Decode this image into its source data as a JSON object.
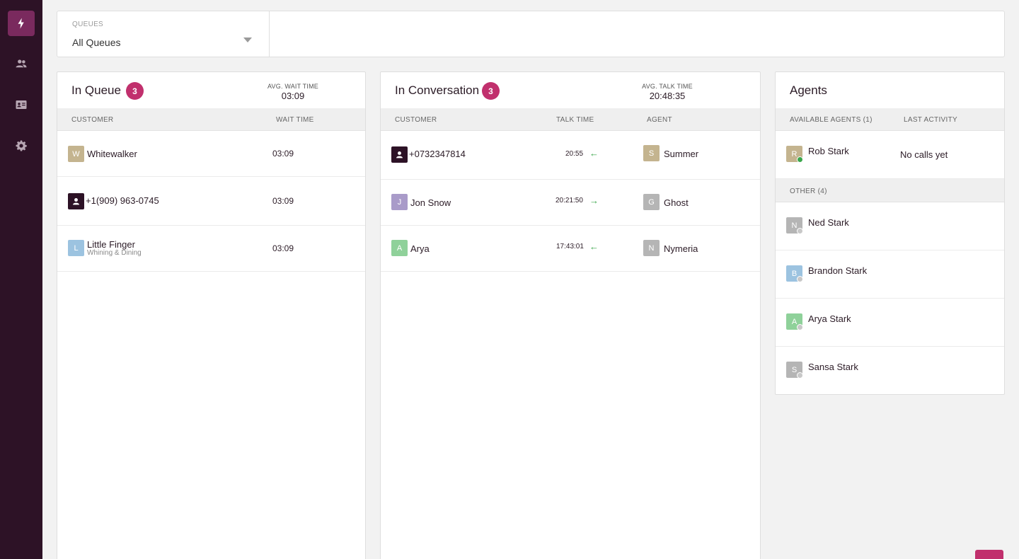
{
  "nav": {
    "items": [
      {
        "icon": "bolt-icon",
        "active": true
      },
      {
        "icon": "people-icon",
        "active": false
      },
      {
        "icon": "id-card-icon",
        "active": false
      },
      {
        "icon": "gear-icon",
        "active": false
      }
    ]
  },
  "filter": {
    "label": "QUEUES",
    "value": "All Queues"
  },
  "in_queue": {
    "title": "In Queue",
    "count": "3",
    "avg_label": "AVG. WAIT TIME",
    "avg_value": "03:09",
    "columns": [
      "CUSTOMER",
      "WAIT TIME"
    ],
    "rows": [
      {
        "initial": "W",
        "avatar_color": "#c4b48f",
        "name": "Whitewalker",
        "sub": "",
        "wait": "03:09"
      },
      {
        "initial": "",
        "avatar_type": "contact",
        "name": "+1(909) 963-0745",
        "sub": "",
        "wait": "03:09"
      },
      {
        "initial": "L",
        "avatar_color": "#9cc3e0",
        "name": "Little Finger",
        "sub": "Whining & Dining",
        "wait": "03:09"
      }
    ]
  },
  "in_conversation": {
    "title": "In Conversation",
    "count": "3",
    "avg_label": "AVG. TALK TIME",
    "avg_value": "20:48:35",
    "columns": [
      "CUSTOMER",
      "TALK TIME",
      "AGENT"
    ],
    "rows": [
      {
        "initial": "",
        "avatar_type": "contact",
        "name": "+0732347814",
        "talk": "20:55",
        "direction": "inbound",
        "agent_initial": "S",
        "agent_color": "#c4b48f",
        "agent": "Summer"
      },
      {
        "initial": "J",
        "avatar_color": "#a99bc9",
        "name": "Jon Snow",
        "talk": "20:21:50",
        "direction": "outbound",
        "agent_initial": "G",
        "agent_color": "#b5b5b5",
        "agent": "Ghost"
      },
      {
        "initial": "A",
        "avatar_color": "#8fd19a",
        "name": "Arya",
        "talk": "17:43:01",
        "direction": "inbound",
        "agent_initial": "N",
        "agent_color": "#b5b5b5",
        "agent": "Nymeria"
      }
    ]
  },
  "agents": {
    "title": "Agents",
    "available_label": "AVAILABLE AGENTS (1)",
    "last_activity_label": "LAST ACTIVITY",
    "available": [
      {
        "initial": "R",
        "color": "#c4b48f",
        "name": "Rob Stark",
        "status": "available",
        "status_color": "#3aa64a",
        "activity": "No calls yet"
      }
    ],
    "other_label": "OTHER (4)",
    "other": [
      {
        "initial": "N",
        "color": "#b5b5b5",
        "name": "Ned Stark",
        "status_color": "#c8c8c8"
      },
      {
        "initial": "B",
        "color": "#9cc3e0",
        "name": "Brandon Stark",
        "status_color": "#c8c8c8"
      },
      {
        "initial": "A",
        "color": "#8fd19a",
        "name": "Arya Stark",
        "status_color": "#c8c8c8"
      },
      {
        "initial": "S",
        "color": "#b5b5b5",
        "name": "Sansa Stark",
        "status_color": "#c8c8c8"
      }
    ]
  }
}
